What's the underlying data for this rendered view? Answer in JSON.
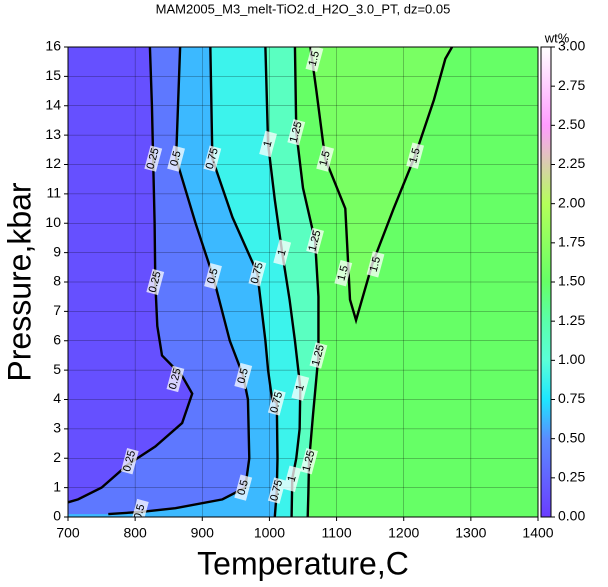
{
  "chart_data": {
    "type": "contour",
    "title": "MAM2005_M3_melt-TiO2.d_H2O_3.0_PT, dz=0.05",
    "xlabel": "Temperature,C",
    "ylabel": "Pressure,kbar",
    "xlim": [
      700,
      1400
    ],
    "ylim": [
      0,
      16
    ],
    "xticks": [
      700,
      800,
      900,
      1000,
      1100,
      1200,
      1300,
      1400
    ],
    "yticks": [
      0,
      1,
      2,
      3,
      4,
      5,
      6,
      7,
      8,
      9,
      10,
      11,
      12,
      13,
      14,
      15,
      16
    ],
    "grid": true,
    "colorbar": {
      "label": "wt%",
      "lim": [
        0,
        3
      ],
      "ticks": [
        {
          "value": 0,
          "label": "0.00"
        },
        {
          "value": 0.25,
          "label": "0.25"
        },
        {
          "value": 0.5,
          "label": "0.50"
        },
        {
          "value": 0.75,
          "label": "0.75"
        },
        {
          "value": 1,
          "label": "1.00"
        },
        {
          "value": 1.25,
          "label": "1.25"
        },
        {
          "value": 1.5,
          "label": "1.50"
        },
        {
          "value": 1.75,
          "label": "1.75"
        },
        {
          "value": 2,
          "label": "2.00"
        },
        {
          "value": 2.25,
          "label": "2.25"
        },
        {
          "value": 2.5,
          "label": "2.50"
        },
        {
          "value": 2.75,
          "label": "2.75"
        },
        {
          "value": 3,
          "label": "3.00"
        }
      ],
      "colormap": [
        [
          0,
          "#6a3cff"
        ],
        [
          0.5,
          "#5a8cff"
        ],
        [
          0.75,
          "#1ee6ff"
        ],
        [
          1.0,
          "#5affd8"
        ],
        [
          1.25,
          "#5affaa"
        ],
        [
          1.5,
          "#66ff66"
        ],
        [
          2.0,
          "#b4ff5a"
        ],
        [
          2.5,
          "#ff9cff"
        ],
        [
          3.0,
          "#ffffff"
        ]
      ]
    },
    "contours": [
      {
        "level": 1.5,
        "x": [
          1061,
          1070,
          1083,
          1113,
          1120,
          1129,
          1153,
          1185,
          1217,
          1245,
          1262,
          1272
        ],
        "y": [
          16,
          14.5,
          12.2,
          10.5,
          7.4,
          6.7,
          8.6,
          10.5,
          12.3,
          14.2,
          15.6,
          16
        ],
        "label_x": [
          1067,
          1083,
          1110,
          1158,
          1217
        ],
        "label_y": [
          15.6,
          12.2,
          8.3,
          8.6,
          12.3
        ]
      },
      {
        "level": 1.25,
        "x": [
          1038,
          1040,
          1050,
          1068,
          1073,
          1073,
          1065,
          1059,
          1058,
          1057
        ],
        "y": [
          16,
          13.1,
          11.2,
          9.4,
          7.5,
          5.5,
          3.5,
          1.9,
          0.8,
          0
        ],
        "label_x": [
          1040,
          1068,
          1073,
          1059
        ],
        "label_y": [
          13.1,
          9.4,
          5.5,
          1.9
        ]
      },
      {
        "level": 1,
        "x": [
          994,
          998,
          1008,
          1019,
          1030,
          1038,
          1046,
          1045,
          1040,
          1034,
          1033
        ],
        "y": [
          16,
          12.7,
          10.8,
          9.0,
          7.4,
          6.0,
          4.4,
          3.0,
          2.0,
          1.3,
          0
        ],
        "label_x": [
          998,
          1019,
          1046,
          1034
        ],
        "label_y": [
          12.7,
          9.0,
          4.4,
          1.3
        ]
      },
      {
        "level": 0.75,
        "x": [
          912,
          915,
          945,
          982,
          994,
          998,
          1004,
          1011,
          1012,
          1011,
          1008
        ],
        "y": [
          16,
          12.2,
          10.2,
          8.3,
          6.0,
          5.0,
          4.0,
          3.9,
          2.0,
          0.9,
          0
        ],
        "label_x": [
          915,
          982,
          1011,
          1011
        ],
        "label_y": [
          12.2,
          8.3,
          3.9,
          0.9
        ]
      },
      {
        "level": 0.5,
        "x": [
          867,
          861,
          890,
          916,
          941,
          961,
          968,
          970,
          964,
          930,
          860,
          807,
          760
        ],
        "y": [
          16,
          12.2,
          10.0,
          8.2,
          6.0,
          4.8,
          4.0,
          2.0,
          1.0,
          0.6,
          0.3,
          0.17,
          0.1
        ],
        "label_x": [
          861,
          916,
          961,
          961,
          807
        ],
        "label_y": [
          12.2,
          8.2,
          4.8,
          1.0,
          0.17
        ]
      },
      {
        "level": 0.25,
        "x": [
          822,
          825,
          827,
          829,
          830,
          833,
          840,
          870,
          885,
          870,
          830,
          790,
          750,
          715,
          700
        ],
        "y": [
          16,
          14,
          12,
          10,
          8,
          6.5,
          5.5,
          4.8,
          4.2,
          3.2,
          2.4,
          1.8,
          1.0,
          0.6,
          0.5
        ],
        "label_x": [
          827,
          830,
          860,
          792
        ],
        "label_y": [
          12.2,
          8.0,
          4.7,
          1.9
        ]
      }
    ]
  }
}
